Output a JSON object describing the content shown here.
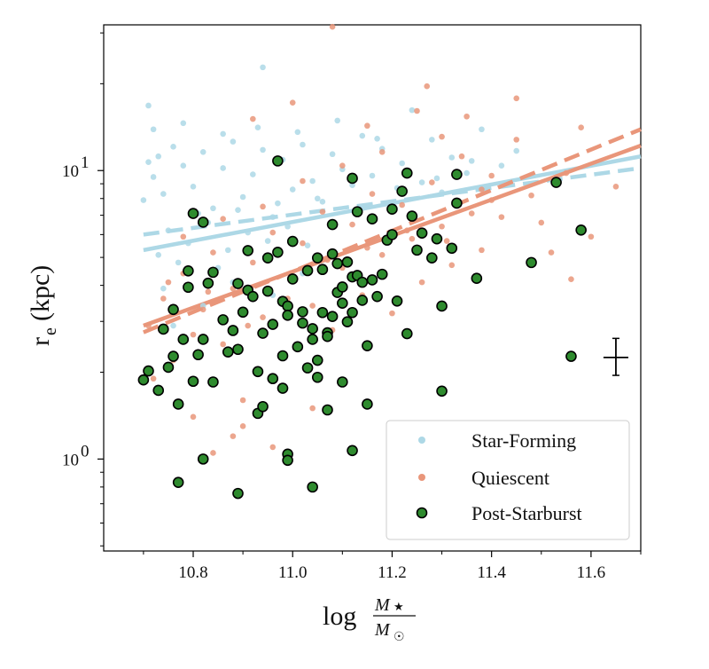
{
  "chart_data": {
    "type": "scatter",
    "title": "",
    "xlabel": "log M★/M☉",
    "xlabel_parts": {
      "log": "log",
      "num": "M",
      "num_sub": "★",
      "den": "M",
      "den_sub": "☉"
    },
    "ylabel": "re (kpc)",
    "ylabel_parts": {
      "main": "r",
      "sub": "e",
      "unit": "(kpc)"
    },
    "xlim": [
      10.62,
      11.7
    ],
    "ylim": [
      0.48,
      32
    ],
    "yscale": "log",
    "xticks": [
      10.8,
      11.0,
      11.2,
      11.4,
      11.6
    ],
    "xtick_labels": [
      "10.8",
      "11.0",
      "11.2",
      "11.4",
      "11.6"
    ],
    "yticks": [
      1,
      10
    ],
    "ytick_labels": [
      {
        "base": "10",
        "exp": "0"
      },
      {
        "base": "10",
        "exp": "1"
      }
    ],
    "legend": {
      "position": "lower-right",
      "entries": [
        {
          "label": "Star-Forming",
          "series": "star_forming"
        },
        {
          "label": "Quiescent",
          "series": "quiescent"
        },
        {
          "label": "Post-Starburst",
          "series": "post_starburst"
        }
      ]
    },
    "colors": {
      "star_forming": "#add8e6",
      "quiescent": "#e9967a",
      "post_starburst_fill": "#2e8b2e",
      "post_starburst_edge": "#000000"
    },
    "series": [
      {
        "name": "Star-Forming",
        "key": "star_forming",
        "points": [
          [
            10.71,
            16.8
          ],
          [
            10.72,
            9.5
          ],
          [
            10.73,
            11.2
          ],
          [
            10.74,
            8.3
          ],
          [
            10.76,
            12.1
          ],
          [
            10.78,
            10.4
          ],
          [
            10.8,
            8.8
          ],
          [
            10.82,
            11.6
          ],
          [
            10.84,
            7.4
          ],
          [
            10.86,
            10.2
          ],
          [
            10.88,
            12.6
          ],
          [
            10.9,
            8.1
          ],
          [
            10.92,
            9.7
          ],
          [
            10.94,
            11.8
          ],
          [
            10.96,
            6.9
          ],
          [
            10.98,
            10.9
          ],
          [
            11.0,
            8.6
          ],
          [
            11.02,
            12.3
          ],
          [
            11.04,
            9.2
          ],
          [
            11.06,
            7.8
          ],
          [
            11.08,
            11.4
          ],
          [
            11.1,
            10.1
          ],
          [
            11.12,
            8.9
          ],
          [
            11.14,
            13.2
          ],
          [
            11.16,
            9.6
          ],
          [
            11.18,
            11.9
          ],
          [
            11.2,
            7.6
          ],
          [
            11.22,
            10.6
          ],
          [
            11.24,
            16.2
          ],
          [
            11.26,
            9.1
          ],
          [
            11.28,
            12.8
          ],
          [
            11.3,
            8.4
          ],
          [
            11.32,
            11.1
          ],
          [
            11.35,
            9.8
          ],
          [
            11.38,
            13.9
          ],
          [
            11.42,
            10.4
          ],
          [
            10.94,
            22.8
          ],
          [
            10.75,
            6.2
          ],
          [
            10.79,
            5.6
          ],
          [
            10.83,
            6.6
          ],
          [
            10.87,
            5.3
          ],
          [
            10.91,
            6.1
          ],
          [
            10.95,
            5.7
          ],
          [
            10.99,
            6.4
          ],
          [
            11.03,
            5.5
          ],
          [
            10.77,
            4.8
          ],
          [
            10.85,
            4.6
          ],
          [
            10.73,
            5.1
          ],
          [
            10.81,
            7.1
          ],
          [
            10.89,
            7.3
          ],
          [
            10.97,
            7.7
          ],
          [
            11.05,
            8.0
          ],
          [
            11.13,
            7.2
          ],
          [
            11.21,
            8.7
          ],
          [
            11.29,
            9.4
          ],
          [
            11.36,
            10.8
          ],
          [
            11.45,
            11.7
          ],
          [
            10.72,
            13.9
          ],
          [
            10.78,
            14.6
          ],
          [
            10.86,
            13.4
          ],
          [
            10.93,
            14.1
          ],
          [
            11.01,
            13.6
          ],
          [
            11.09,
            14.9
          ],
          [
            11.17,
            12.9
          ],
          [
            10.74,
            3.9
          ],
          [
            10.82,
            3.4
          ],
          [
            10.76,
            2.9
          ],
          [
            10.88,
            4.1
          ],
          [
            10.96,
            3.7
          ],
          [
            11.02,
            4.4
          ],
          [
            10.7,
            7.9
          ],
          [
            10.71,
            10.7
          ]
        ]
      },
      {
        "name": "Quiescent",
        "key": "quiescent",
        "points": [
          [
            10.71,
            2.9
          ],
          [
            10.72,
            1.9
          ],
          [
            10.74,
            3.6
          ],
          [
            10.76,
            2.2
          ],
          [
            10.78,
            4.4
          ],
          [
            10.8,
            2.7
          ],
          [
            10.82,
            3.3
          ],
          [
            10.84,
            5.2
          ],
          [
            10.86,
            2.5
          ],
          [
            10.88,
            3.9
          ],
          [
            10.9,
            1.6
          ],
          [
            10.92,
            4.8
          ],
          [
            10.94,
            3.1
          ],
          [
            10.96,
            6.1
          ],
          [
            10.98,
            2.3
          ],
          [
            11.0,
            4.2
          ],
          [
            11.02,
            5.6
          ],
          [
            11.04,
            3.4
          ],
          [
            11.06,
            7.2
          ],
          [
            11.08,
            2.8
          ],
          [
            11.1,
            4.6
          ],
          [
            11.12,
            6.5
          ],
          [
            11.14,
            3.7
          ],
          [
            11.16,
            8.3
          ],
          [
            11.18,
            5.1
          ],
          [
            11.2,
            3.2
          ],
          [
            11.22,
            7.6
          ],
          [
            11.24,
            5.8
          ],
          [
            11.26,
            4.1
          ],
          [
            11.28,
            9.1
          ],
          [
            11.3,
            6.4
          ],
          [
            11.32,
            4.7
          ],
          [
            11.34,
            11.2
          ],
          [
            11.36,
            7.1
          ],
          [
            11.38,
            5.3
          ],
          [
            11.4,
            9.6
          ],
          [
            11.42,
            6.9
          ],
          [
            11.45,
            12.8
          ],
          [
            11.48,
            8.2
          ],
          [
            11.5,
            6.6
          ],
          [
            11.55,
            9.8
          ],
          [
            11.58,
            14.1
          ],
          [
            11.08,
            31.5
          ],
          [
            11.0,
            17.2
          ],
          [
            10.92,
            15.1
          ],
          [
            11.15,
            14.3
          ],
          [
            11.25,
            16.1
          ],
          [
            11.35,
            15.4
          ],
          [
            11.27,
            19.6
          ],
          [
            11.45,
            17.8
          ],
          [
            10.8,
            1.4
          ],
          [
            10.88,
            1.2
          ],
          [
            10.96,
            1.1
          ],
          [
            10.84,
            1.05
          ],
          [
            10.9,
            1.3
          ],
          [
            11.04,
            1.5
          ],
          [
            10.78,
            5.9
          ],
          [
            10.86,
            6.8
          ],
          [
            10.94,
            7.5
          ],
          [
            11.02,
            9.2
          ],
          [
            11.1,
            10.4
          ],
          [
            11.18,
            11.6
          ],
          [
            11.3,
            13.1
          ],
          [
            11.4,
            7.9
          ],
          [
            11.52,
            5.2
          ],
          [
            11.56,
            4.2
          ],
          [
            11.6,
            5.9
          ],
          [
            11.65,
            8.8
          ],
          [
            10.75,
            4.1
          ],
          [
            10.83,
            3.8
          ],
          [
            10.91,
            2.9
          ],
          [
            10.99,
            3.6
          ],
          [
            11.07,
            4.9
          ],
          [
            11.15,
            5.4
          ],
          [
            11.23,
            6.2
          ],
          [
            11.31,
            5.7
          ],
          [
            11.38,
            8.6
          ]
        ]
      },
      {
        "name": "Post-Starburst",
        "key": "post_starburst",
        "points": [
          [
            10.7,
            1.88
          ],
          [
            10.71,
            2.02
          ],
          [
            10.73,
            1.73
          ],
          [
            10.74,
            2.82
          ],
          [
            10.75,
            2.08
          ],
          [
            10.76,
            2.27
          ],
          [
            10.76,
            3.3
          ],
          [
            10.77,
            1.55
          ],
          [
            10.78,
            2.6
          ],
          [
            10.79,
            4.49
          ],
          [
            10.79,
            3.94
          ],
          [
            10.8,
            7.1
          ],
          [
            10.8,
            1.86
          ],
          [
            10.81,
            2.3
          ],
          [
            10.82,
            6.62
          ],
          [
            10.82,
            2.6
          ],
          [
            10.83,
            4.07
          ],
          [
            10.84,
            1.85
          ],
          [
            10.84,
            4.44
          ],
          [
            10.86,
            3.04
          ],
          [
            10.87,
            2.35
          ],
          [
            10.88,
            2.79
          ],
          [
            10.89,
            2.4
          ],
          [
            10.89,
            4.06
          ],
          [
            10.9,
            3.23
          ],
          [
            10.91,
            3.85
          ],
          [
            10.91,
            5.28
          ],
          [
            10.92,
            3.66
          ],
          [
            10.93,
            2.01
          ],
          [
            10.93,
            1.44
          ],
          [
            10.94,
            2.73
          ],
          [
            10.94,
            1.52
          ],
          [
            10.95,
            4.98
          ],
          [
            10.95,
            3.82
          ],
          [
            10.96,
            2.93
          ],
          [
            10.96,
            1.9
          ],
          [
            10.97,
            5.21
          ],
          [
            10.98,
            2.28
          ],
          [
            10.98,
            1.76
          ],
          [
            10.98,
            3.52
          ],
          [
            10.99,
            3.39
          ],
          [
            10.99,
            3.15
          ],
          [
            11.0,
            5.68
          ],
          [
            11.0,
            4.21
          ],
          [
            11.01,
            2.45
          ],
          [
            11.02,
            2.96
          ],
          [
            11.02,
            3.24
          ],
          [
            11.03,
            2.07
          ],
          [
            11.04,
            2.83
          ],
          [
            11.04,
            2.6
          ],
          [
            11.05,
            1.92
          ],
          [
            11.05,
            4.98
          ],
          [
            11.06,
            3.22
          ],
          [
            11.06,
            4.54
          ],
          [
            11.07,
            2.74
          ],
          [
            11.07,
            2.66
          ],
          [
            11.08,
            3.12
          ],
          [
            11.08,
            5.14
          ],
          [
            11.09,
            4.76
          ],
          [
            11.09,
            3.78
          ],
          [
            11.1,
            1.85
          ],
          [
            11.1,
            3.47
          ],
          [
            11.1,
            3.95
          ],
          [
            11.11,
            4.82
          ],
          [
            11.11,
            2.99
          ],
          [
            11.12,
            4.28
          ],
          [
            11.12,
            3.22
          ],
          [
            11.13,
            4.33
          ],
          [
            11.14,
            4.1
          ],
          [
            11.14,
            3.55
          ],
          [
            11.15,
            2.47
          ],
          [
            11.15,
            1.55
          ],
          [
            11.16,
            4.18
          ],
          [
            11.17,
            3.66
          ],
          [
            11.18,
            4.37
          ],
          [
            11.19,
            5.74
          ],
          [
            11.2,
            6.0
          ],
          [
            11.2,
            7.35
          ],
          [
            11.21,
            3.53
          ],
          [
            11.22,
            8.48
          ],
          [
            11.23,
            2.72
          ],
          [
            11.24,
            6.95
          ],
          [
            11.25,
            5.3
          ],
          [
            11.26,
            6.07
          ],
          [
            11.28,
            4.98
          ],
          [
            11.29,
            5.8
          ],
          [
            11.3,
            3.39
          ],
          [
            11.3,
            1.72
          ],
          [
            11.32,
            5.38
          ],
          [
            11.33,
            9.7
          ],
          [
            11.33,
            7.71
          ],
          [
            11.37,
            4.23
          ],
          [
            11.48,
            4.8
          ],
          [
            11.53,
            9.1
          ],
          [
            11.56,
            2.27
          ],
          [
            11.58,
            6.22
          ],
          [
            10.97,
            10.8
          ],
          [
            11.12,
            9.4
          ],
          [
            11.23,
            9.8
          ],
          [
            10.77,
            0.83
          ],
          [
            10.82,
            1.0
          ],
          [
            10.89,
            0.76
          ],
          [
            10.99,
            1.04
          ],
          [
            10.99,
            0.99
          ],
          [
            11.04,
            0.8
          ],
          [
            11.12,
            1.07
          ],
          [
            11.13,
            7.2
          ],
          [
            11.16,
            6.8
          ],
          [
            11.03,
            4.5
          ],
          [
            11.05,
            2.2
          ],
          [
            11.08,
            6.5
          ],
          [
            11.07,
            1.48
          ]
        ]
      }
    ],
    "fit_lines": [
      {
        "series": "star_forming",
        "style": "solid",
        "x": [
          10.7,
          11.7
        ],
        "y": [
          5.3,
          11.2
        ]
      },
      {
        "series": "star_forming",
        "style": "dashed",
        "x": [
          10.7,
          11.7
        ],
        "y": [
          6.0,
          10.2
        ]
      },
      {
        "series": "quiescent",
        "style": "solid",
        "x": [
          10.7,
          11.7
        ],
        "y": [
          2.9,
          12.2
        ]
      },
      {
        "series": "quiescent",
        "style": "dashed",
        "x": [
          10.7,
          11.7
        ],
        "y": [
          2.75,
          13.9
        ]
      }
    ],
    "error_bar": {
      "x": 11.65,
      "y": 2.25,
      "xerr": 0.025,
      "y_low": 1.95,
      "y_high": 2.62
    }
  }
}
